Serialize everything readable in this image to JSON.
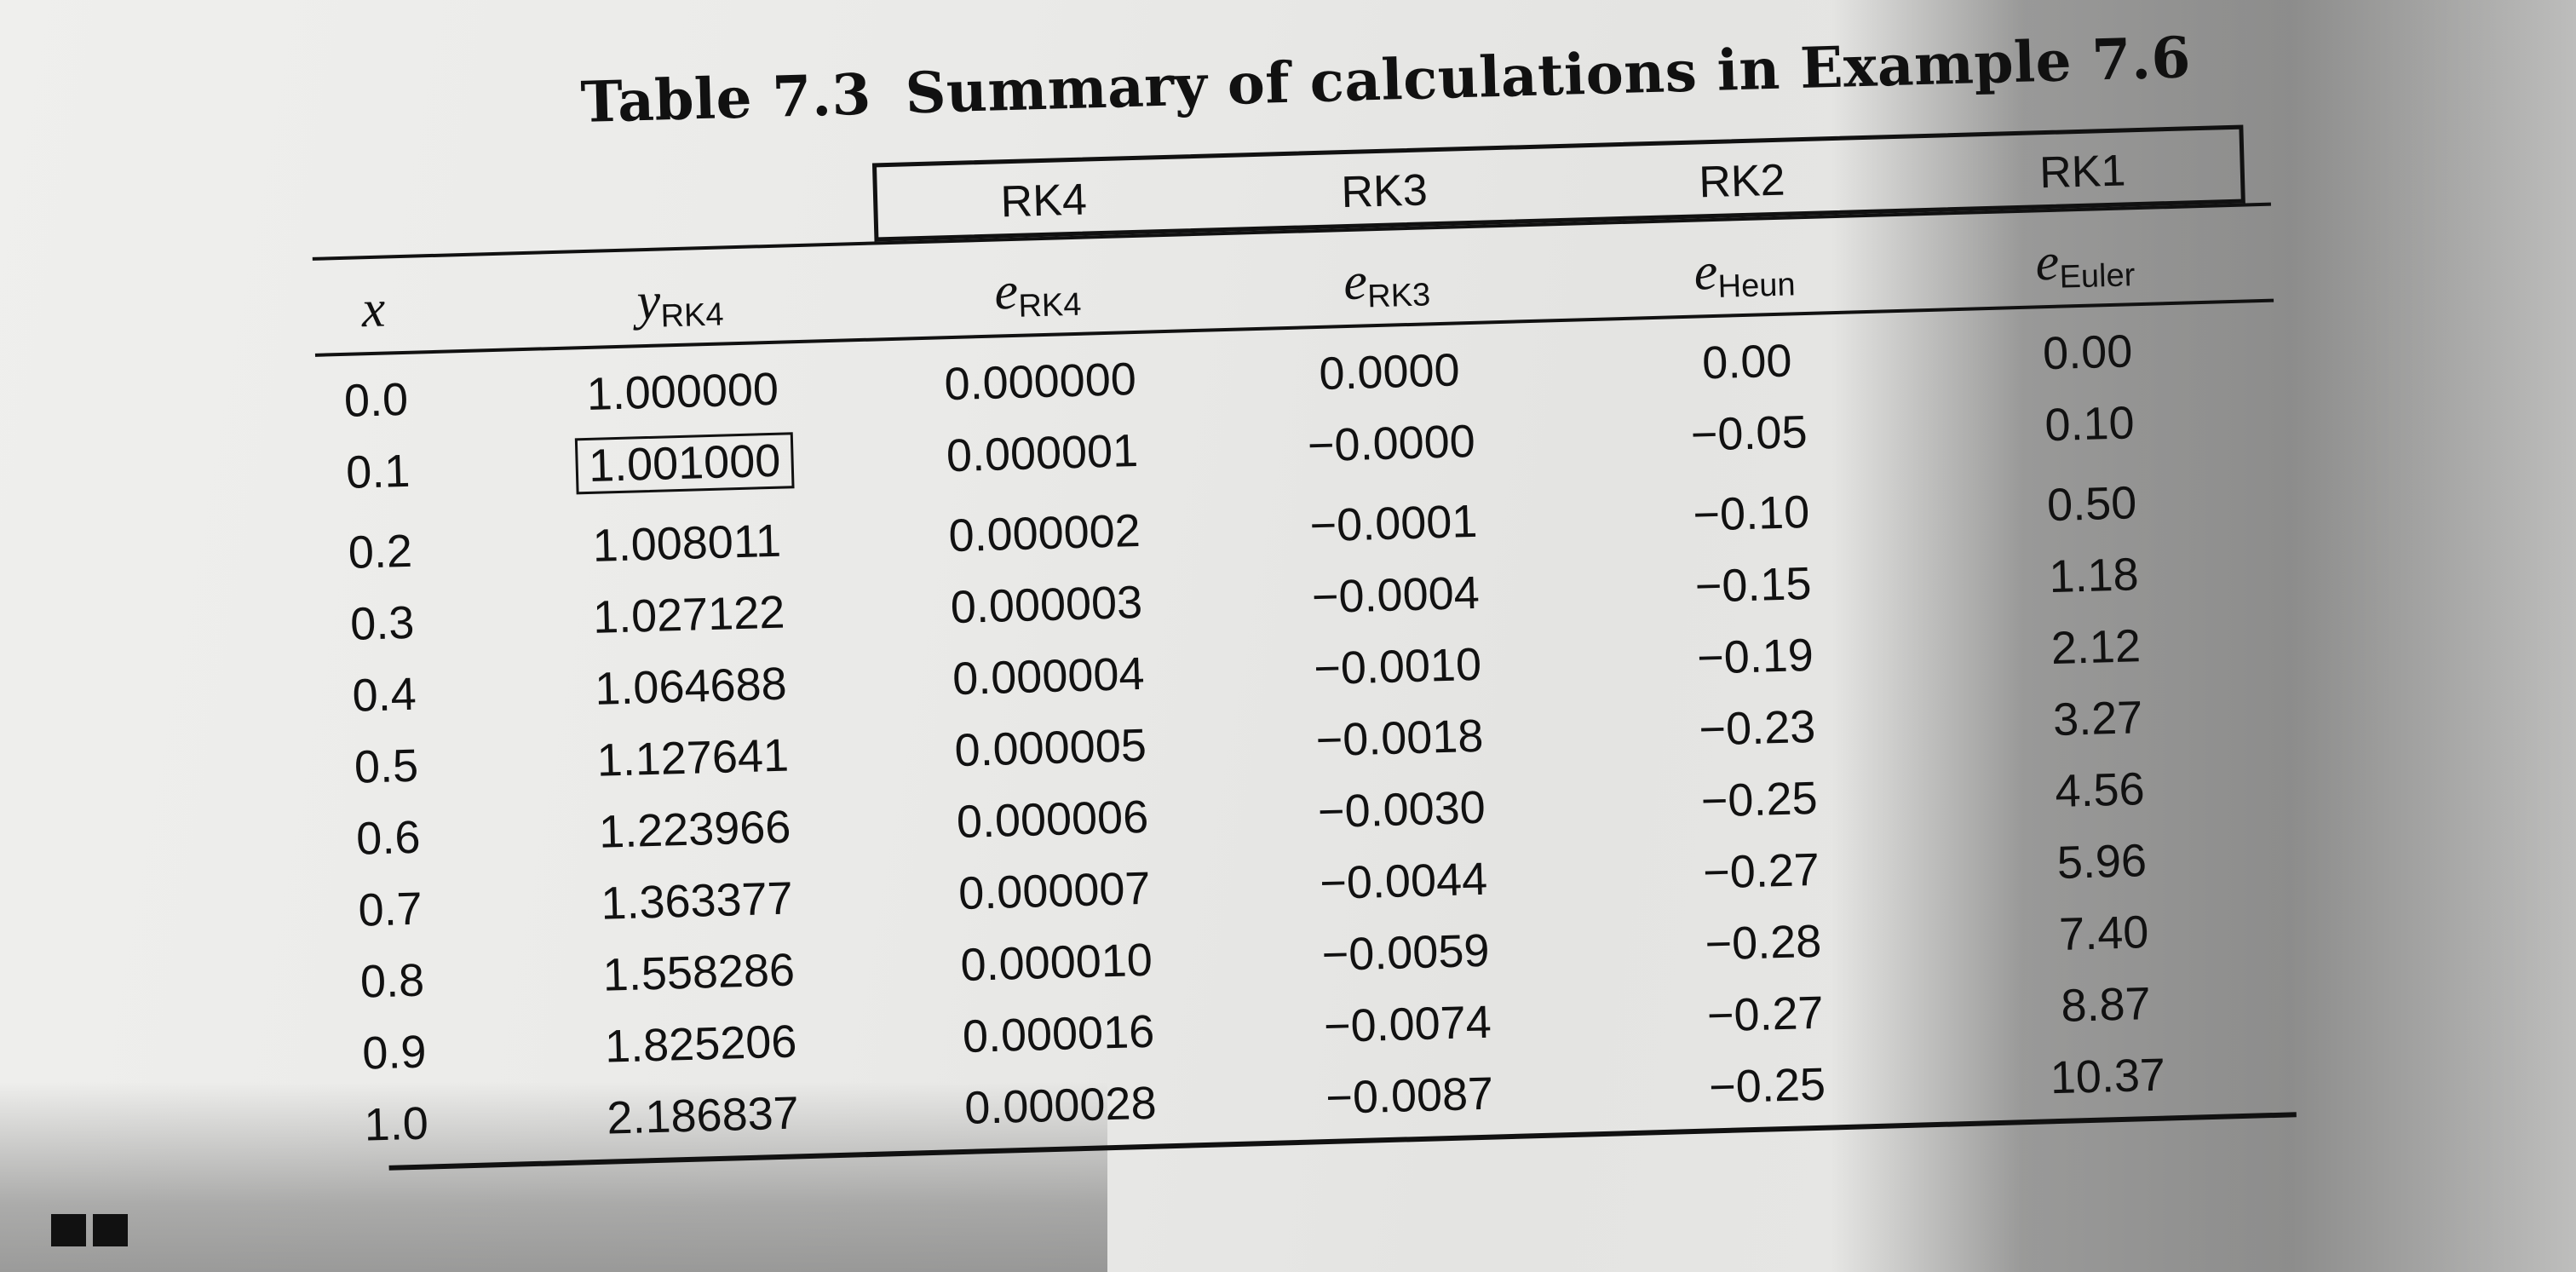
{
  "table": {
    "title_number": "Table 7.3",
    "title_text": "Summary of calculations in Example 7.6",
    "methods": [
      "RK4",
      "RK3",
      "RK2",
      "RK1"
    ],
    "headers": {
      "x": "x",
      "y_base": "y",
      "y_sub": "RK4",
      "e_rk4_base": "e",
      "e_rk4_sub": "RK4",
      "e_rk3_base": "e",
      "e_rk3_sub": "RK3",
      "e_heun_base": "e",
      "e_heun_sub": "Heun",
      "e_euler_base": "e",
      "e_euler_sub": "Euler"
    },
    "rows": [
      [
        "0.0",
        "1.000000",
        "0.000000",
        "0.0000",
        "0.00",
        "0.00"
      ],
      [
        "0.1",
        "1.001000",
        "0.000001",
        "−0.0000",
        "−0.05",
        "0.10"
      ],
      [
        "0.2",
        "1.008011",
        "0.000002",
        "−0.0001",
        "−0.10",
        "0.50"
      ],
      [
        "0.3",
        "1.027122",
        "0.000003",
        "−0.0004",
        "−0.15",
        "1.18"
      ],
      [
        "0.4",
        "1.064688",
        "0.000004",
        "−0.0010",
        "−0.19",
        "2.12"
      ],
      [
        "0.5",
        "1.127641",
        "0.000005",
        "−0.0018",
        "−0.23",
        "3.27"
      ],
      [
        "0.6",
        "1.223966",
        "0.000006",
        "−0.0030",
        "−0.25",
        "4.56"
      ],
      [
        "0.7",
        "1.363377",
        "0.000007",
        "−0.0044",
        "−0.27",
        "5.96"
      ],
      [
        "0.8",
        "1.558286",
        "0.000010",
        "−0.0059",
        "−0.28",
        "7.40"
      ],
      [
        "0.9",
        "1.825206",
        "0.000016",
        "−0.0074",
        "−0.27",
        "8.87"
      ],
      [
        "1.0",
        "2.186837",
        "0.000028",
        "−0.0087",
        "−0.25",
        "10.37"
      ]
    ]
  }
}
